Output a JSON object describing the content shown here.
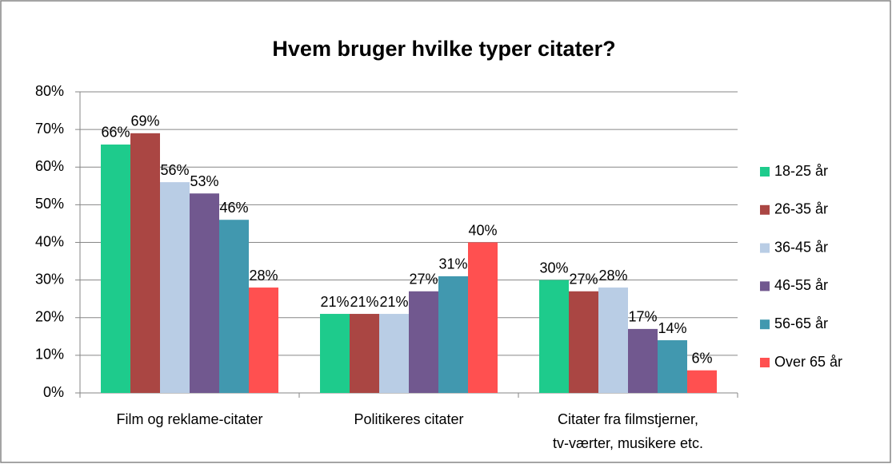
{
  "chart_data": {
    "type": "bar",
    "title": "Hvem bruger hvilke typer citater?",
    "categories": [
      "Film og reklame-citater",
      "Politikeres citater",
      "Citater fra filmstjerner,\ntv-værter, musikere etc."
    ],
    "series": [
      {
        "name": "18-25 år",
        "color": "#1ecb8c",
        "values": [
          66,
          21,
          30
        ],
        "value_labels": [
          "66%",
          "21%",
          "30%"
        ]
      },
      {
        "name": "26-35 år",
        "color": "#aa4643",
        "values": [
          69,
          21,
          27
        ],
        "value_labels": [
          "69%",
          "21%",
          "27%"
        ]
      },
      {
        "name": "36-45 år",
        "color": "#b9cde5",
        "values": [
          56,
          21,
          28
        ],
        "value_labels": [
          "56%",
          "21%",
          "28%"
        ]
      },
      {
        "name": "46-55 år",
        "color": "#71588f",
        "values": [
          53,
          27,
          17
        ],
        "value_labels": [
          "53%",
          "27%",
          "17%"
        ]
      },
      {
        "name": "56-65 år",
        "color": "#4198af",
        "values": [
          46,
          31,
          14
        ],
        "value_labels": [
          "46%",
          "31%",
          "14%"
        ]
      },
      {
        "name": "Over 65 år",
        "color": "#ff5050",
        "values": [
          28,
          40,
          6
        ],
        "value_labels": [
          "28%",
          "40%",
          "6%"
        ]
      }
    ],
    "ylim": [
      0,
      80
    ],
    "yticks": [
      {
        "value": 0,
        "label": "0%"
      },
      {
        "value": 10,
        "label": "10%"
      },
      {
        "value": 20,
        "label": "20%"
      },
      {
        "value": 30,
        "label": "30%"
      },
      {
        "value": 40,
        "label": "40%"
      },
      {
        "value": 50,
        "label": "50%"
      },
      {
        "value": 60,
        "label": "60%"
      },
      {
        "value": 70,
        "label": "70%"
      },
      {
        "value": 80,
        "label": "80%"
      }
    ],
    "grid": true,
    "legend": "right"
  }
}
